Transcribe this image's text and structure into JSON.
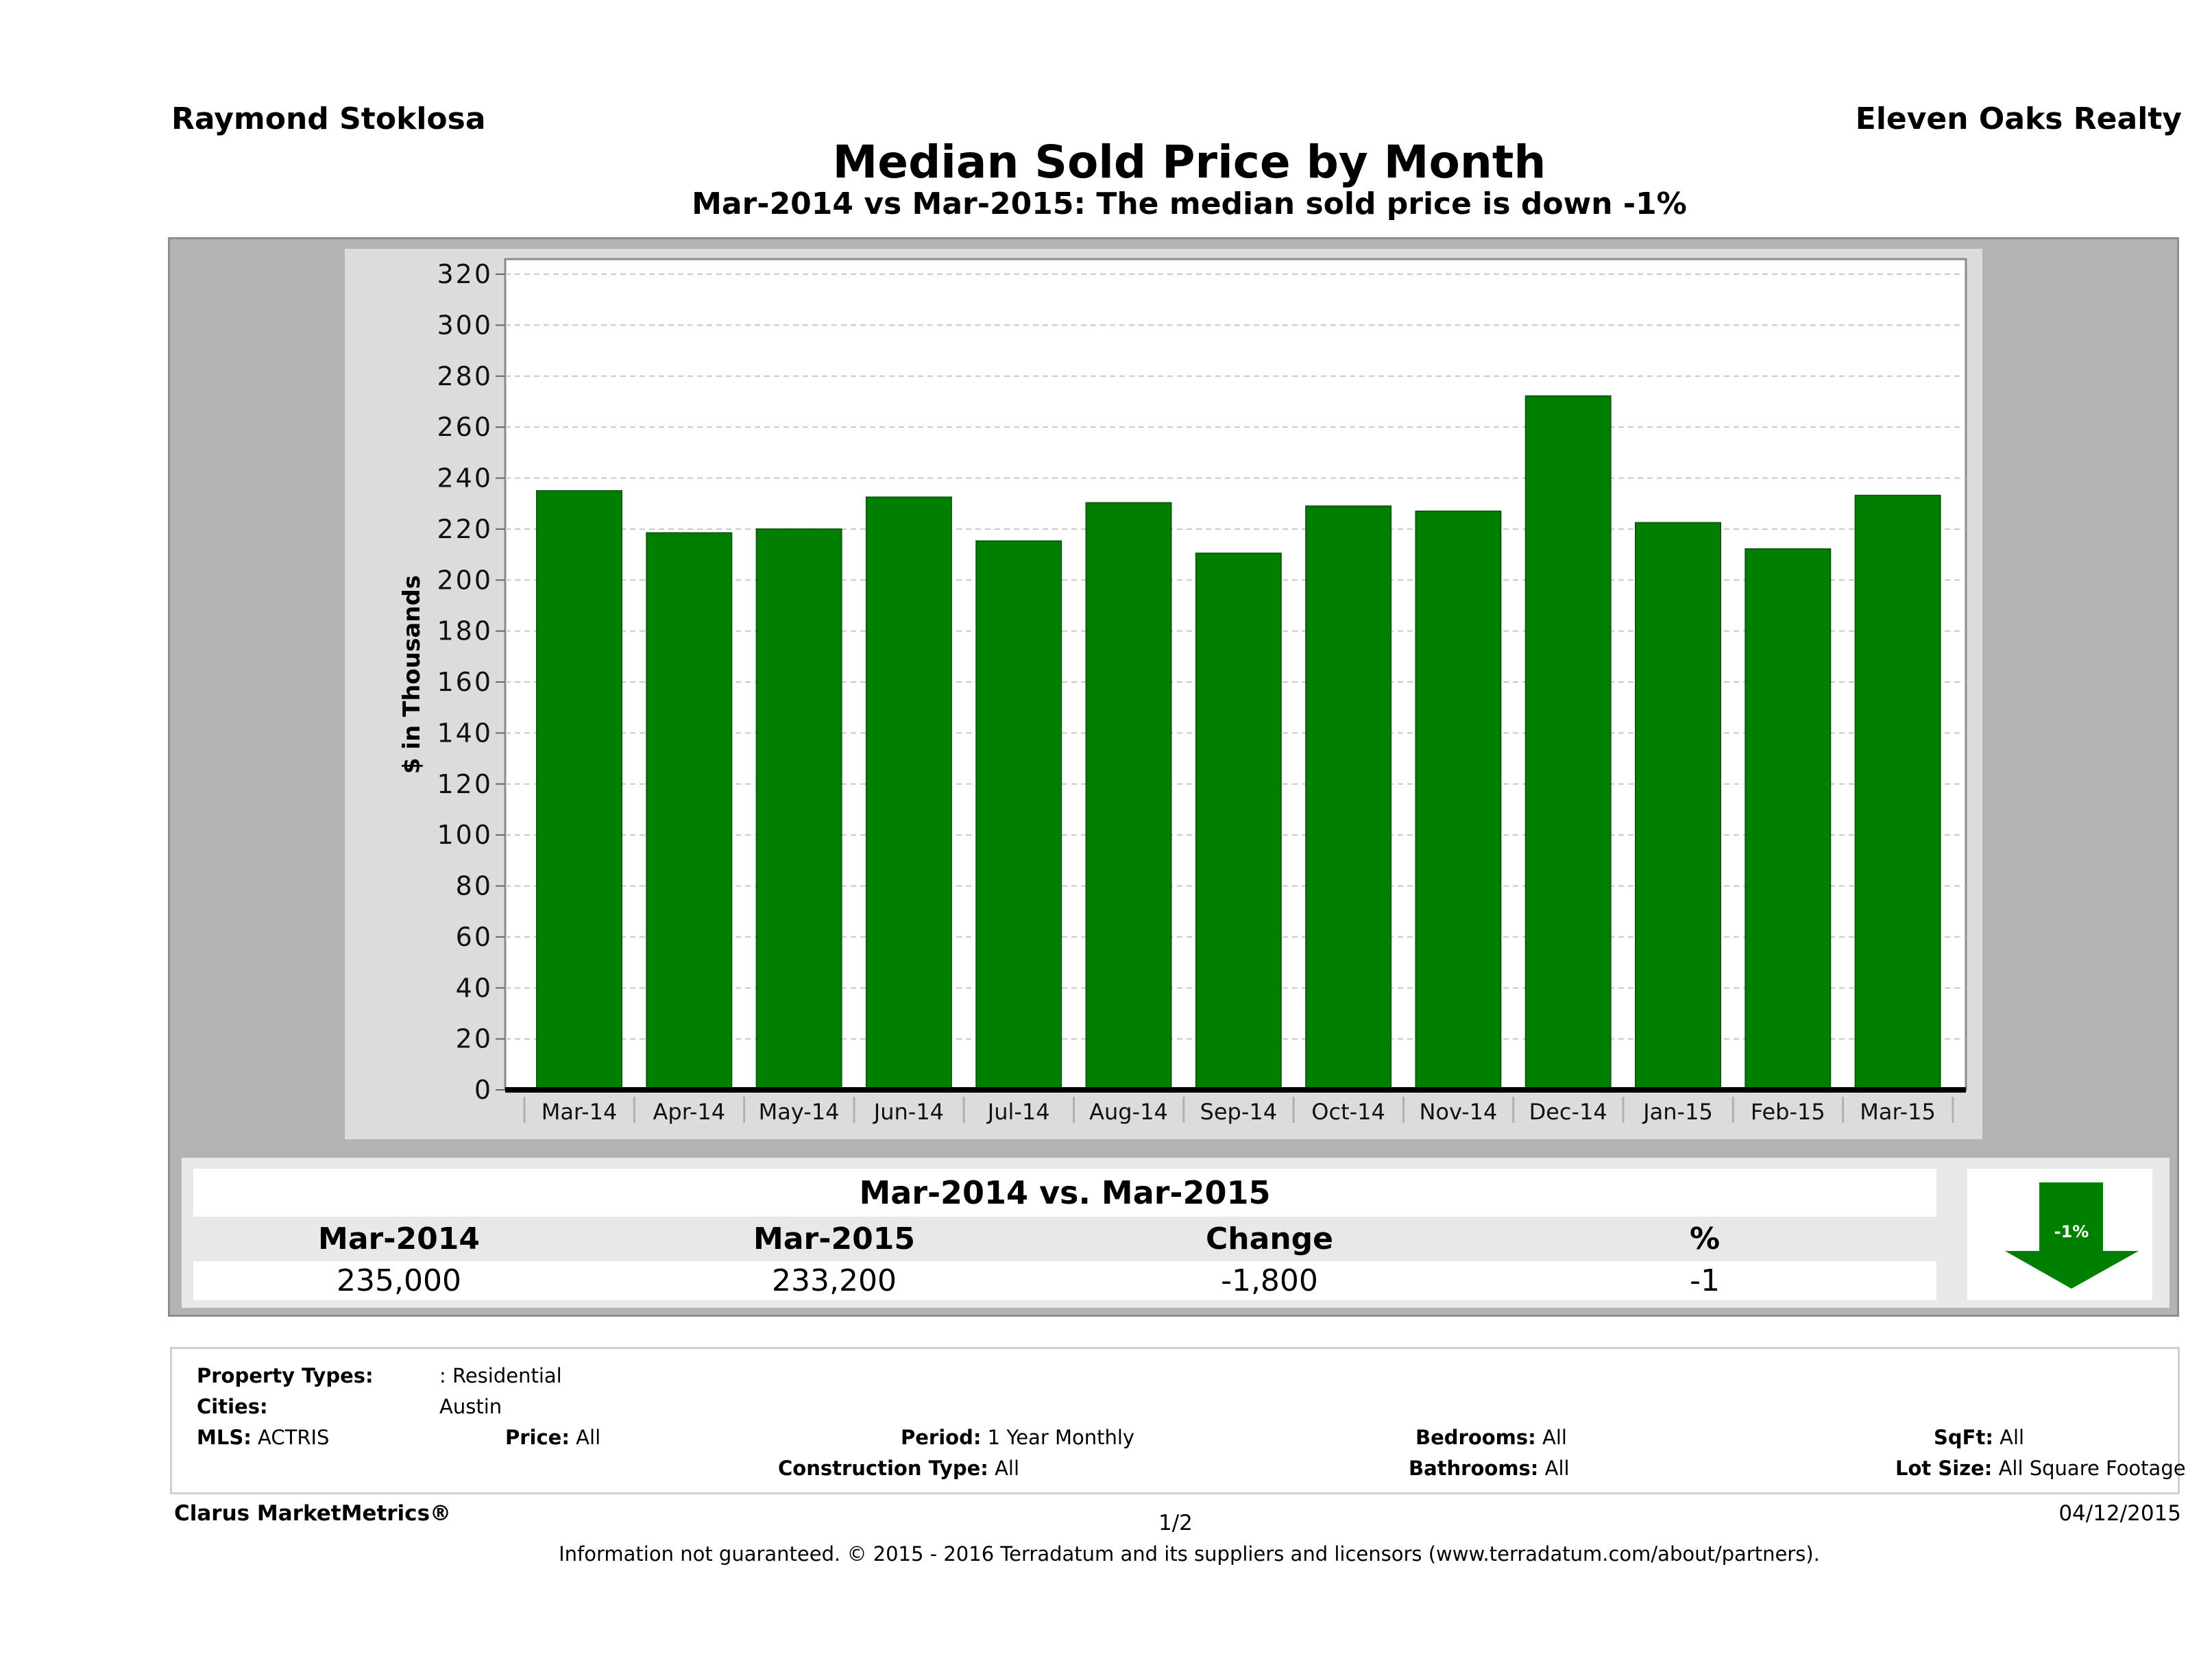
{
  "header": {
    "agent_name": "Raymond Stoklosa",
    "company_name": "Eleven Oaks Realty",
    "title": "Median Sold Price by Month",
    "subtitle": "Mar-2014 vs Mar-2015: The median sold price is down -1%"
  },
  "chart_data": {
    "type": "bar",
    "title": "Median Sold Price by Month",
    "subtitle": "Mar-2014 vs Mar-2015: The median sold price is down -1%",
    "xlabel": "",
    "ylabel": "$ in Thousands",
    "categories": [
      "Mar-14",
      "Apr-14",
      "May-14",
      "Jun-14",
      "Jul-14",
      "Aug-14",
      "Sep-14",
      "Oct-14",
      "Nov-14",
      "Dec-14",
      "Jan-15",
      "Feb-15",
      "Mar-15"
    ],
    "values": [
      235,
      218.5,
      220,
      232.5,
      215.3,
      230.3,
      210.5,
      229,
      227,
      272.2,
      222.5,
      212.2,
      233.2
    ],
    "ylim": [
      0,
      320
    ],
    "yticks": [
      0,
      20,
      40,
      60,
      80,
      100,
      120,
      140,
      160,
      180,
      200,
      220,
      240,
      260,
      280,
      300,
      320
    ],
    "grid": true,
    "legend": "none",
    "bar_color": "#007f00"
  },
  "summary": {
    "title": "Mar-2014 vs. Mar-2015",
    "columns": [
      "Mar-2014",
      "Mar-2015",
      "Change",
      "%"
    ],
    "values": [
      "235,000",
      "233,200",
      "-1,800",
      "-1"
    ],
    "arrow_label": "-1%",
    "arrow_direction": "down",
    "arrow_color": "#007f00"
  },
  "filters": {
    "property_types_label": "Property Types:",
    "property_types_value": ": Residential",
    "cities_label": "Cities:",
    "cities_value": "Austin",
    "mls_label": "MLS:",
    "mls_value": "ACTRIS",
    "price_label": "Price:",
    "price_value": "All",
    "period_label": "Period:",
    "period_value": "1 Year Monthly",
    "construction_label": "Construction Type:",
    "construction_value": "All",
    "bedrooms_label": "Bedrooms:",
    "bedrooms_value": "All",
    "bathrooms_label": "Bathrooms:",
    "bathrooms_value": "All",
    "sqft_label": "SqFt:",
    "sqft_value": "All",
    "lotsize_label": "Lot Size:",
    "lotsize_value": "All Square Footage"
  },
  "footer": {
    "brand": "Clarus MarketMetrics®",
    "page": "1/2",
    "date": "04/12/2015",
    "legal": "Information not guaranteed. © 2015 - 2016 Terradatum and its suppliers and licensors (www.terradatum.com/about/partners)."
  }
}
